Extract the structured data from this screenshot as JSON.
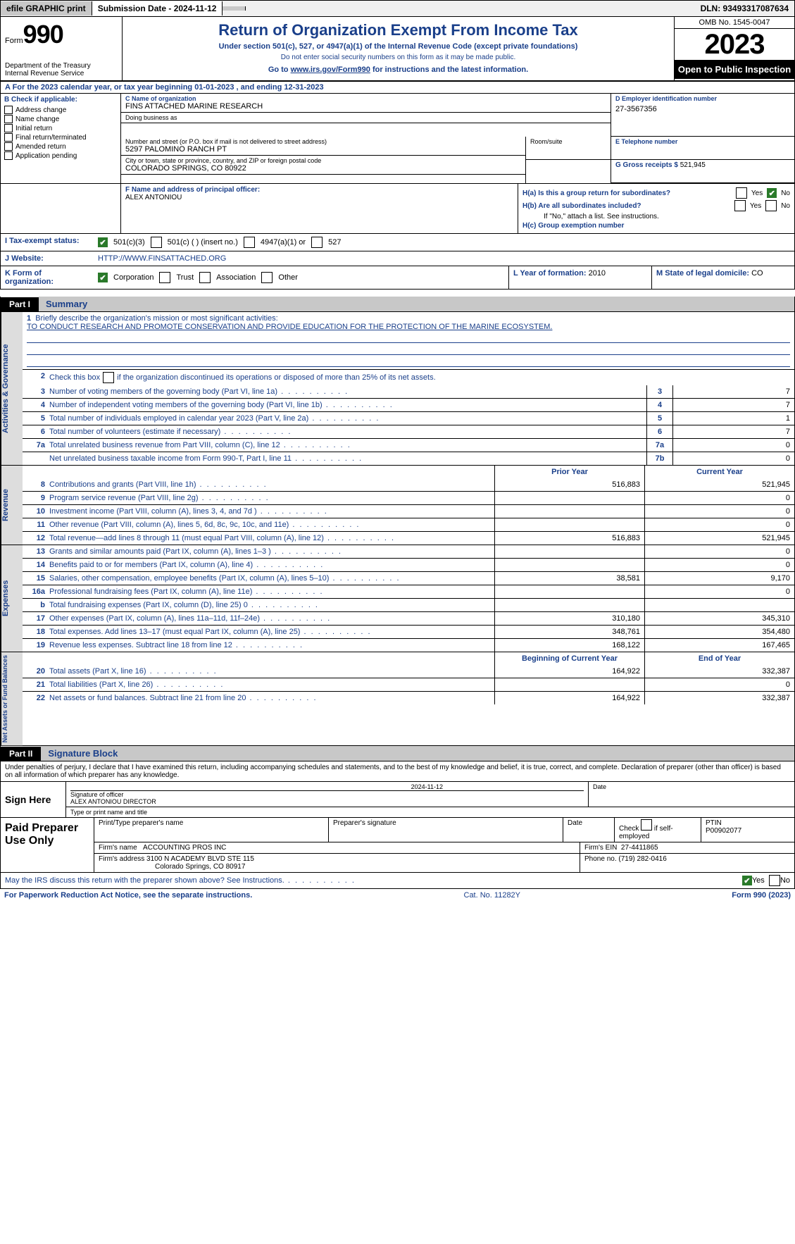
{
  "topbar": {
    "efile": "efile GRAPHIC print",
    "submission": "Submission Date - 2024-11-12",
    "dln": "DLN: 93493317087634"
  },
  "header": {
    "form_prefix": "Form",
    "form_number": "990",
    "title": "Return of Organization Exempt From Income Tax",
    "subtitle": "Under section 501(c), 527, or 4947(a)(1) of the Internal Revenue Code (except private foundations)",
    "nossn": "Do not enter social security numbers on this form as it may be made public.",
    "goto_prefix": "Go to ",
    "goto_link": "www.irs.gov/Form990",
    "goto_suffix": " for instructions and the latest information.",
    "dept": "Department of the Treasury\nInternal Revenue Service",
    "omb": "OMB No. 1545-0047",
    "year": "2023",
    "open_pub": "Open to Public Inspection"
  },
  "a_line": {
    "text": "A For the 2023 calendar year, or tax year beginning 01-01-2023    , and ending 12-31-2023"
  },
  "b": {
    "header": "B Check if applicable:",
    "items": [
      "Address change",
      "Name change",
      "Initial return",
      "Final return/terminated",
      "Amended return",
      "Application pending"
    ]
  },
  "c": {
    "name_label": "C Name of organization",
    "name": "FINS ATTACHED MARINE RESEARCH",
    "dba_label": "Doing business as",
    "dba": "",
    "addr_label": "Number and street (or P.O. box if mail is not delivered to street address)",
    "addr": "5297 PALOMINO RANCH PT",
    "room_label": "Room/suite",
    "city_label": "City or town, state or province, country, and ZIP or foreign postal code",
    "city": "COLORADO SPRINGS, CO  80922"
  },
  "d": {
    "label": "D Employer identification number",
    "value": "27-3567356"
  },
  "e": {
    "label": "E Telephone number",
    "value": ""
  },
  "g": {
    "label": "G Gross receipts $",
    "value": "521,945"
  },
  "f": {
    "label": "F  Name and address of principal officer:",
    "name": "ALEX ANTONIOU"
  },
  "h": {
    "a": "H(a)  Is this a group return for subordinates?",
    "b": "H(b)  Are all subordinates included?",
    "b_note": "If \"No,\" attach a list. See instructions.",
    "c": "H(c)  Group exemption number",
    "yes": "Yes",
    "no": "No"
  },
  "i": {
    "label": "I   Tax-exempt status:",
    "opts": [
      "501(c)(3)",
      "501(c) (  ) (insert no.)",
      "4947(a)(1) or",
      "527"
    ]
  },
  "j": {
    "label": "J   Website:",
    "value": "HTTP://WWW.FINSATTACHED.ORG"
  },
  "k": {
    "label": "K Form of organization:",
    "opts": [
      "Corporation",
      "Trust",
      "Association",
      "Other"
    ]
  },
  "l": {
    "label": "L Year of formation:",
    "value": "2010"
  },
  "m": {
    "label": "M State of legal domicile:",
    "value": "CO"
  },
  "part1": {
    "tag": "Part I",
    "title": "Summary"
  },
  "summary": {
    "gov_label": "Activities & Governance",
    "rev_label": "Revenue",
    "exp_label": "Expenses",
    "net_label": "Net Assets or Fund Balances",
    "mission_label": "Briefly describe the organization's mission or most significant activities:",
    "mission": "TO CONDUCT RESEARCH AND PROMOTE CONSERVATION AND PROVIDE EDUCATION FOR THE PROTECTION OF THE MARINE ECOSYSTEM.",
    "line2": "Check this box      if the organization discontinued its operations or disposed of more than 25% of its net assets.",
    "rows_gov": [
      {
        "n": "3",
        "d": "Number of voting members of the governing body (Part VI, line 1a)",
        "b": "3",
        "v": "7"
      },
      {
        "n": "4",
        "d": "Number of independent voting members of the governing body (Part VI, line 1b)",
        "b": "4",
        "v": "7"
      },
      {
        "n": "5",
        "d": "Total number of individuals employed in calendar year 2023 (Part V, line 2a)",
        "b": "5",
        "v": "1"
      },
      {
        "n": "6",
        "d": "Total number of volunteers (estimate if necessary)",
        "b": "6",
        "v": "7"
      },
      {
        "n": "7a",
        "d": "Total unrelated business revenue from Part VIII, column (C), line 12",
        "b": "7a",
        "v": "0"
      },
      {
        "n": "",
        "d": "Net unrelated business taxable income from Form 990-T, Part I, line 11",
        "b": "7b",
        "v": "0"
      }
    ],
    "prior": "Prior Year",
    "current": "Current Year",
    "rows_rev": [
      {
        "n": "8",
        "d": "Contributions and grants (Part VIII, line 1h)",
        "p": "516,883",
        "c": "521,945"
      },
      {
        "n": "9",
        "d": "Program service revenue (Part VIII, line 2g)",
        "p": "",
        "c": "0"
      },
      {
        "n": "10",
        "d": "Investment income (Part VIII, column (A), lines 3, 4, and 7d )",
        "p": "",
        "c": "0"
      },
      {
        "n": "11",
        "d": "Other revenue (Part VIII, column (A), lines 5, 6d, 8c, 9c, 10c, and 11e)",
        "p": "",
        "c": "0"
      },
      {
        "n": "12",
        "d": "Total revenue—add lines 8 through 11 (must equal Part VIII, column (A), line 12)",
        "p": "516,883",
        "c": "521,945"
      }
    ],
    "rows_exp": [
      {
        "n": "13",
        "d": "Grants and similar amounts paid (Part IX, column (A), lines 1–3 )",
        "p": "",
        "c": "0"
      },
      {
        "n": "14",
        "d": "Benefits paid to or for members (Part IX, column (A), line 4)",
        "p": "",
        "c": "0"
      },
      {
        "n": "15",
        "d": "Salaries, other compensation, employee benefits (Part IX, column (A), lines 5–10)",
        "p": "38,581",
        "c": "9,170"
      },
      {
        "n": "16a",
        "d": "Professional fundraising fees (Part IX, column (A), line 11e)",
        "p": "",
        "c": "0"
      },
      {
        "n": "b",
        "d": "Total fundraising expenses (Part IX, column (D), line 25) 0",
        "p": "shade",
        "c": "shade"
      },
      {
        "n": "17",
        "d": "Other expenses (Part IX, column (A), lines 11a–11d, 11f–24e)",
        "p": "310,180",
        "c": "345,310"
      },
      {
        "n": "18",
        "d": "Total expenses. Add lines 13–17 (must equal Part IX, column (A), line 25)",
        "p": "348,761",
        "c": "354,480"
      },
      {
        "n": "19",
        "d": "Revenue less expenses. Subtract line 18 from line 12",
        "p": "168,122",
        "c": "167,465"
      }
    ],
    "beg": "Beginning of Current Year",
    "end": "End of Year",
    "rows_net": [
      {
        "n": "20",
        "d": "Total assets (Part X, line 16)",
        "p": "164,922",
        "c": "332,387"
      },
      {
        "n": "21",
        "d": "Total liabilities (Part X, line 26)",
        "p": "",
        "c": "0"
      },
      {
        "n": "22",
        "d": "Net assets or fund balances. Subtract line 21 from line 20",
        "p": "164,922",
        "c": "332,387"
      }
    ]
  },
  "part2": {
    "tag": "Part II",
    "title": "Signature Block"
  },
  "sig": {
    "penalty": "Under penalties of perjury, I declare that I have examined this return, including accompanying schedules and statements, and to the best of my knowledge and belief, it is true, correct, and complete. Declaration of preparer (other than officer) is based on all information of which preparer has any knowledge.",
    "sign_here": "Sign Here",
    "date": "2024-11-12",
    "sig_label": "Signature of officer",
    "officer": "ALEX ANTONIOU  DIRECTOR",
    "type_label": "Type or print name and title",
    "date_label": "Date",
    "paid": "Paid Preparer Use Only",
    "prep_name_label": "Print/Type preparer's name",
    "prep_sig_label": "Preparer's signature",
    "check_self": "Check        if self-employed",
    "ptin_label": "PTIN",
    "ptin": "P00902077",
    "firm_name_label": "Firm's name",
    "firm_name": "ACCOUNTING PROS INC",
    "firm_ein_label": "Firm's EIN",
    "firm_ein": "27-4411865",
    "firm_addr_label": "Firm's address",
    "firm_addr1": "3100 N ACADEMY BLVD STE 115",
    "firm_addr2": "Colorado Springs, CO  80917",
    "phone_label": "Phone no.",
    "phone": "(719) 282-0416",
    "discuss": "May the IRS discuss this return with the preparer shown above? See Instructions.",
    "yes": "Yes",
    "no": "No"
  },
  "footer": {
    "paperwork": "For Paperwork Reduction Act Notice, see the separate instructions.",
    "cat": "Cat. No. 11282Y",
    "form": "Form 990 (2023)"
  }
}
